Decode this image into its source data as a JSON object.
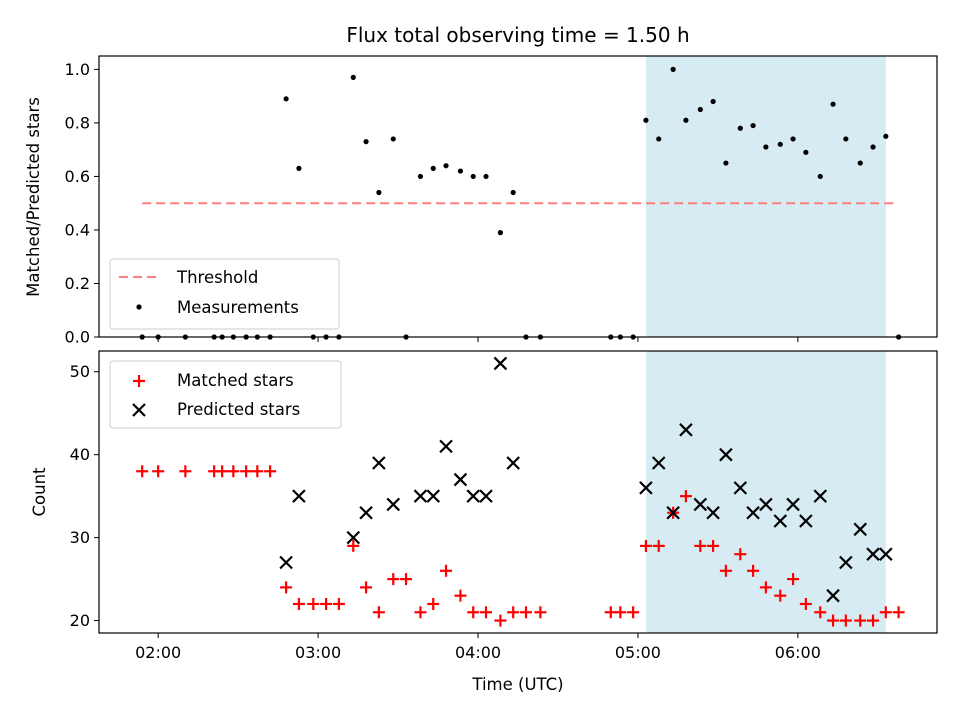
{
  "chart_data": {
    "title": "Flux total observing time = 1.50 h",
    "xlabel": "Time (UTC)",
    "x_unit": "decimal hours UTC",
    "xlim": [
      1.63,
      6.87
    ],
    "xticks": [
      {
        "value": 2.0,
        "label": "02:00"
      },
      {
        "value": 3.0,
        "label": "03:00"
      },
      {
        "value": 4.0,
        "label": "04:00"
      },
      {
        "value": 5.0,
        "label": "05:00"
      },
      {
        "value": 6.0,
        "label": "06:00"
      }
    ],
    "shaded_interval": {
      "start": 5.05,
      "end": 6.55,
      "color": "#add8e6"
    },
    "panels": [
      {
        "id": "ratio",
        "type": "scatter",
        "ylabel": "Matched/Predicted stars",
        "ylim": [
          0.0,
          1.05
        ],
        "yticks": [
          0.0,
          0.2,
          0.4,
          0.6,
          0.8,
          1.0
        ],
        "ytick_labels": [
          "0.0",
          "0.2",
          "0.4",
          "0.6",
          "0.8",
          "1.0"
        ],
        "threshold": {
          "name": "Threshold",
          "value": 0.5,
          "x_range": [
            1.9,
            6.62
          ],
          "color": "#ff7f7f"
        },
        "legend": {
          "placement": "lower-left",
          "entries": [
            "Threshold",
            "Measurements"
          ]
        },
        "series": [
          {
            "name": "Measurements",
            "color": "#000000",
            "x": [
              1.9,
              2.0,
              2.17,
              2.35,
              2.4,
              2.47,
              2.55,
              2.62,
              2.7,
              2.8,
              2.88,
              2.97,
              3.05,
              3.13,
              3.22,
              3.3,
              3.38,
              3.47,
              3.55,
              3.64,
              3.72,
              3.8,
              3.89,
              3.97,
              4.05,
              4.14,
              4.22,
              4.3,
              4.39,
              4.83,
              4.89,
              4.97,
              5.05,
              5.13,
              5.22,
              5.3,
              5.39,
              5.47,
              5.55,
              5.64,
              5.72,
              5.8,
              5.89,
              5.97,
              6.05,
              6.14,
              6.22,
              6.3,
              6.39,
              6.47,
              6.55,
              6.63
            ],
            "y": [
              0.0,
              0.0,
              0.0,
              0.0,
              0.0,
              0.0,
              0.0,
              0.0,
              0.0,
              0.89,
              0.63,
              0.0,
              0.0,
              0.0,
              0.97,
              0.73,
              0.54,
              0.74,
              0.0,
              0.6,
              0.63,
              0.64,
              0.62,
              0.6,
              0.6,
              0.39,
              0.54,
              0.0,
              0.0,
              0.0,
              0.0,
              0.0,
              0.81,
              0.74,
              1.0,
              0.81,
              0.85,
              0.88,
              0.65,
              0.78,
              0.79,
              0.71,
              0.72,
              0.74,
              0.69,
              0.6,
              0.87,
              0.74,
              0.65,
              0.71,
              0.75,
              0.0
            ]
          }
        ]
      },
      {
        "id": "counts",
        "type": "scatter",
        "ylabel": "Count",
        "ylim": [
          18.5,
          52.5
        ],
        "yticks": [
          20,
          30,
          40,
          50
        ],
        "ytick_labels": [
          "20",
          "30",
          "40",
          "50"
        ],
        "legend": {
          "placement": "upper-left",
          "entries": [
            "Matched stars",
            "Predicted stars"
          ]
        },
        "series": [
          {
            "name": "Matched stars",
            "marker": "plus",
            "color": "#ff0000",
            "x": [
              1.9,
              2.0,
              2.17,
              2.35,
              2.4,
              2.47,
              2.55,
              2.62,
              2.7,
              2.8,
              2.88,
              2.97,
              3.05,
              3.13,
              3.22,
              3.3,
              3.38,
              3.47,
              3.55,
              3.64,
              3.72,
              3.8,
              3.89,
              3.97,
              4.05,
              4.14,
              4.22,
              4.3,
              4.39,
              4.83,
              4.89,
              4.97,
              5.05,
              5.13,
              5.22,
              5.3,
              5.39,
              5.47,
              5.55,
              5.64,
              5.72,
              5.8,
              5.89,
              5.97,
              6.05,
              6.14,
              6.22,
              6.3,
              6.39,
              6.47,
              6.55,
              6.63
            ],
            "y": [
              38,
              38,
              38,
              38,
              38,
              38,
              38,
              38,
              38,
              24,
              22,
              22,
              22,
              22,
              29,
              24,
              21,
              25,
              25,
              21,
              22,
              26,
              23,
              21,
              21,
              20,
              21,
              21,
              21,
              21,
              21,
              21,
              29,
              29,
              33,
              35,
              29,
              29,
              26,
              28,
              26,
              24,
              23,
              25,
              22,
              21,
              20,
              20,
              20,
              20,
              21,
              21
            ]
          },
          {
            "name": "Predicted stars",
            "marker": "x",
            "color": "#000000",
            "x": [
              2.8,
              2.88,
              3.22,
              3.3,
              3.38,
              3.47,
              3.64,
              3.72,
              3.8,
              3.89,
              3.97,
              4.05,
              4.14,
              4.22,
              5.05,
              5.13,
              5.22,
              5.3,
              5.39,
              5.47,
              5.55,
              5.64,
              5.72,
              5.8,
              5.89,
              5.97,
              6.05,
              6.14,
              6.22,
              6.3,
              6.39,
              6.47,
              6.55
            ],
            "y": [
              27,
              35,
              30,
              33,
              39,
              34,
              35,
              35,
              41,
              37,
              35,
              35,
              51,
              39,
              36,
              39,
              33,
              43,
              34,
              33,
              40,
              36,
              33,
              34,
              32,
              34,
              32,
              35,
              23,
              27,
              31,
              28,
              28
            ]
          }
        ]
      }
    ]
  }
}
